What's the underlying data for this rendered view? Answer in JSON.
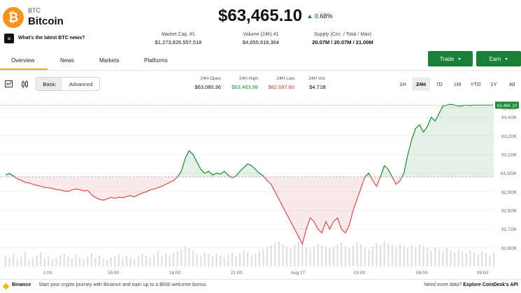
{
  "coin": {
    "ticker": "BTC",
    "name": "Bitcoin",
    "logo_glyph": "₿",
    "logo_color": "#f7931a"
  },
  "news": {
    "icon_glyph": "≡",
    "text": "What's the latest BTC news?"
  },
  "price": {
    "value": "$63,465.10",
    "change": "0.68%",
    "direction": "up",
    "up_color": "#1a8a32"
  },
  "stats": [
    {
      "label": "Market Cap. #1",
      "value": "$1,273,826,557,518"
    },
    {
      "label": "Volume (24h) #1",
      "value": "$4,655,618,364"
    },
    {
      "label": "Supply (Circ. / Total / Max)",
      "value": "20.07M / 20.07M / 21.00M"
    }
  ],
  "tabs": [
    "Overview",
    "News",
    "Markets",
    "Platforms"
  ],
  "actions": {
    "trade": "Trade",
    "earn": "Earn",
    "accent": "#1a7f37"
  },
  "toolbar": {
    "basic": "Basic",
    "advanced": "Advanced"
  },
  "ohlc": [
    {
      "label": "24H Open",
      "value": "$63,080.36",
      "color": "#111111"
    },
    {
      "label": "24H High",
      "value": "$63,463.98",
      "color": "#1a8a32"
    },
    {
      "label": "24H Low",
      "value": "$62,697.60",
      "color": "#c0392b"
    },
    {
      "label": "24H Vol.",
      "value": "$4.71B",
      "color": "#111111"
    }
  ],
  "ranges": [
    "1H",
    "24H",
    "7D",
    "1M",
    "YTD",
    "1Y",
    "All"
  ],
  "active_range": "24H",
  "chart_data": {
    "type": "line",
    "baseline": 63080.36,
    "last_price_tag": "63,465.10",
    "ylim": [
      62600,
      63500
    ],
    "y_ticks": [
      "63,4OK",
      "63,4OK",
      "63,2OK",
      "63,1OK",
      "63,OOK",
      "62,9OK",
      "62,8OK",
      "62,7OK",
      "62,6OK"
    ],
    "y_tick_values": [
      63450,
      63400,
      63300,
      63200,
      63100,
      63000,
      62900,
      62800,
      62700
    ],
    "x_ticks": [
      "1:00",
      "15:00",
      "18:00",
      "21:00",
      "Aug 17",
      "03:00",
      "06:00",
      "09:00"
    ],
    "x": [
      0,
      2,
      4,
      6,
      8,
      10,
      12,
      14,
      16,
      18,
      20,
      22,
      24,
      26,
      28,
      30,
      32,
      34,
      36,
      38,
      40,
      42,
      44,
      46,
      48,
      50,
      52,
      54,
      56,
      58,
      60,
      62,
      64,
      66,
      68,
      70,
      72,
      74,
      76,
      78,
      80,
      82,
      84,
      86,
      88,
      90,
      92,
      94,
      96,
      98,
      100,
      102,
      104,
      106,
      108,
      110,
      112,
      114,
      116,
      118,
      120,
      122,
      124,
      126,
      128,
      130,
      132,
      134,
      136,
      138,
      140,
      142,
      144,
      146,
      148,
      150,
      152,
      154,
      156,
      158,
      160,
      162,
      164,
      166,
      168,
      170,
      172,
      174,
      176,
      178,
      180,
      182,
      184,
      186,
      188,
      190,
      192,
      194,
      196,
      198,
      200,
      202,
      204,
      206,
      208,
      210,
      212,
      214,
      216,
      218,
      220,
      222,
      224,
      226,
      228,
      230,
      232,
      234,
      236,
      238,
      240,
      242,
      244,
      246,
      248,
      250
    ],
    "values": [
      63091,
      63098,
      63085,
      63070,
      63062,
      63051,
      63048,
      63040,
      63035,
      63030,
      63024,
      63022,
      63018,
      63012,
      63010,
      63005,
      63002,
      63010,
      63015,
      63012,
      63005,
      63008,
      62985,
      62970,
      62960,
      62955,
      62962,
      62970,
      62965,
      62972,
      62968,
      62975,
      62980,
      62973,
      62985,
      62992,
      63000,
      63010,
      63015,
      63022,
      63030,
      63040,
      63050,
      63060,
      63080,
      63110,
      63180,
      63220,
      63200,
      63160,
      63120,
      63100,
      63110,
      63090,
      63100,
      63095,
      63110,
      63090,
      63075,
      63085,
      63110,
      63130,
      63150,
      63140,
      63120,
      63100,
      63085,
      63060,
      63040,
      63000,
      62960,
      62920,
      62880,
      62840,
      62800,
      62760,
      62720,
      62800,
      62860,
      62840,
      62800,
      62780,
      62840,
      62800,
      62840,
      62860,
      62800,
      62780,
      62820,
      62900,
      62960,
      63020,
      63080,
      63100,
      63060,
      63030,
      63080,
      63140,
      63120,
      63080,
      63040,
      63060,
      63100,
      63200,
      63280,
      63340,
      63360,
      63320,
      63350,
      63400,
      63380,
      63420,
      63460,
      63465,
      63470,
      63465,
      63460,
      63462,
      63465,
      63463,
      63465,
      63465,
      63465,
      63465,
      63465,
      63465
    ],
    "volume": [
      22,
      18,
      25,
      15,
      20,
      30,
      12,
      18,
      22,
      28,
      16,
      20,
      14,
      18,
      22,
      26,
      20,
      16,
      24,
      18,
      14,
      20,
      26,
      18,
      22,
      16,
      12,
      18,
      20,
      24,
      16,
      22,
      18,
      14,
      20,
      26,
      22,
      18,
      24,
      30,
      20,
      26,
      22,
      28,
      30,
      34,
      40,
      36,
      30,
      26,
      22,
      28,
      24,
      20,
      26,
      22,
      18,
      24,
      28,
      20,
      26,
      32,
      28,
      22,
      26,
      30,
      34,
      38,
      42,
      46,
      50,
      44,
      40,
      36,
      42,
      48,
      44,
      38,
      34,
      40,
      46,
      42,
      38,
      36,
      40,
      44,
      48,
      40,
      36,
      42,
      48,
      44,
      38,
      34,
      40,
      46,
      42,
      50,
      46,
      42,
      38,
      44,
      40,
      36,
      42,
      38,
      44,
      40,
      36,
      32,
      38,
      34,
      30,
      36,
      32,
      28,
      34,
      30,
      26,
      32,
      28,
      24,
      30,
      26,
      22,
      28
    ],
    "up_color": "#1a8a32",
    "down_color": "#d94c4c"
  },
  "footer": {
    "brand": "Binance",
    "message": "· Start your crypto journey with Binance and earn up to a $600 welcome bonus.",
    "api_prefix": "Need more data?",
    "api_link": "Explore CoinDesk's API"
  }
}
